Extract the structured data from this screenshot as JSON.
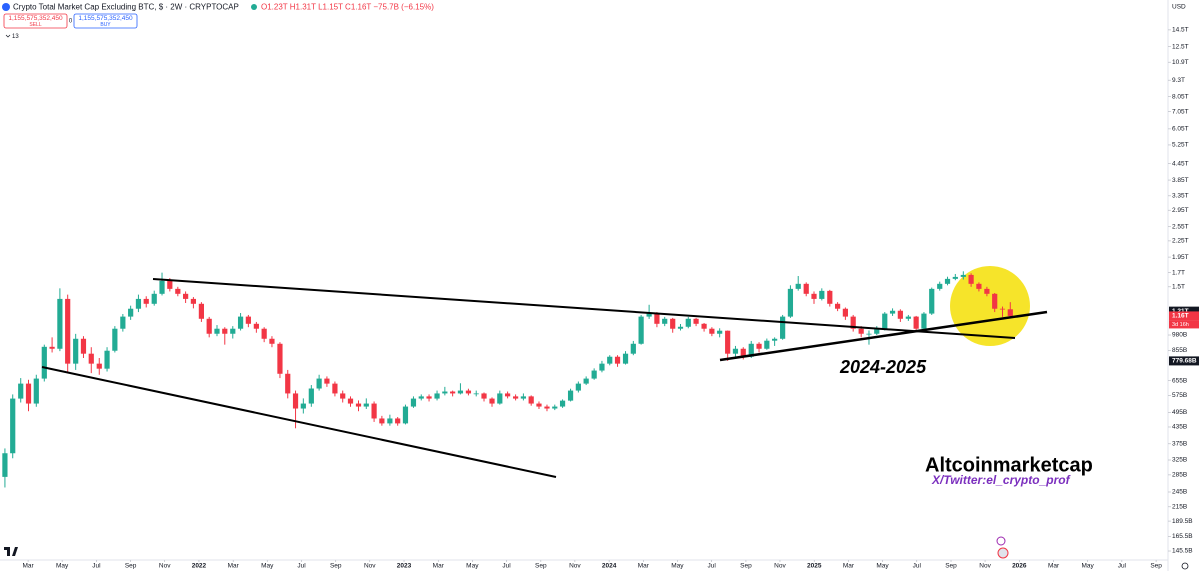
{
  "chart_data": {
    "type": "candlestick",
    "title": "Crypto Total Market Cap Excluding BTC, $ · 2W · CRYPTOCAP",
    "ohlc_text": "O1.23T H1.31T L1.15T C1.16T −75.7B (−6.15%)",
    "sell_price": "1,155,575,352,450",
    "sell_label": "SELL",
    "spread": "0",
    "buy_price": "1,155,575,352,450",
    "buy_label": "BUY",
    "indicator_count": "13",
    "currency": "USD",
    "annotations": [
      "2024-2025",
      "Altcoinmarketcap",
      "X/Twitter:el_crypto_prof"
    ],
    "log_scale": true,
    "grid": false,
    "up_color": "#22ab94",
    "down_color": "#f23645",
    "xlim": [
      2021.03,
      2026.725
    ],
    "ylim": [
      134.4,
      18880
    ],
    "xticks": [
      {
        "value": 2021.167,
        "label": "Mar"
      },
      {
        "value": 2021.333,
        "label": "May"
      },
      {
        "value": 2021.5,
        "label": "Jul"
      },
      {
        "value": 2021.667,
        "label": "Sep"
      },
      {
        "value": 2021.833,
        "label": "Nov"
      },
      2022,
      {
        "value": 2022.167,
        "label": "Mar"
      },
      {
        "value": 2022.333,
        "label": "May"
      },
      {
        "value": 2022.5,
        "label": "Jul"
      },
      {
        "value": 2022.667,
        "label": "Sep"
      },
      {
        "value": 2022.833,
        "label": "Nov"
      },
      2023,
      {
        "value": 2023.167,
        "label": "Mar"
      },
      {
        "value": 2023.333,
        "label": "May"
      },
      {
        "value": 2023.5,
        "label": "Jul"
      },
      {
        "value": 2023.667,
        "label": "Sep"
      },
      {
        "value": 2023.833,
        "label": "Nov"
      },
      2024,
      {
        "value": 2024.167,
        "label": "Mar"
      },
      {
        "value": 2024.333,
        "label": "May"
      },
      {
        "value": 2024.5,
        "label": "Jul"
      },
      {
        "value": 2024.667,
        "label": "Sep"
      },
      {
        "value": 2024.833,
        "label": "Nov"
      },
      2025,
      {
        "value": 2025.167,
        "label": "Mar"
      },
      {
        "value": 2025.333,
        "label": "May"
      },
      {
        "value": 2025.5,
        "label": "Jul"
      },
      {
        "value": 2025.667,
        "label": "Sep"
      },
      {
        "value": 2025.833,
        "label": "Nov"
      },
      2026,
      {
        "value": 2026.167,
        "label": "Mar"
      },
      {
        "value": 2026.333,
        "label": "May"
      },
      {
        "value": 2026.5,
        "label": "Jul"
      },
      {
        "value": 2026.667,
        "label": "Sep"
      }
    ],
    "yticks": [
      {
        "value": 14500,
        "label": "14.5T"
      },
      {
        "value": 12500,
        "label": "12.5T"
      },
      {
        "value": 10900,
        "label": "10.9T"
      },
      {
        "value": 9300,
        "label": "9.3T"
      },
      {
        "value": 8050,
        "label": "8.05T"
      },
      {
        "value": 7050,
        "label": "7.05T"
      },
      {
        "value": 6050,
        "label": "6.05T"
      },
      {
        "value": 5250,
        "label": "5.25T"
      },
      {
        "value": 4450,
        "label": "4.45T"
      },
      {
        "value": 3850,
        "label": "3.85T"
      },
      {
        "value": 3350,
        "label": "3.35T"
      },
      {
        "value": 2950,
        "label": "2.95T"
      },
      {
        "value": 2550,
        "label": "2.55T"
      },
      {
        "value": 2250,
        "label": "2.25T"
      },
      {
        "value": 1950,
        "label": "1.95T"
      },
      {
        "value": 1700,
        "label": "1.7T"
      },
      {
        "value": 1500,
        "label": "1.5T"
      },
      {
        "value": 980,
        "label": "980B"
      },
      {
        "value": 855,
        "label": "855B"
      },
      {
        "value": 655,
        "label": "655B"
      },
      {
        "value": 575,
        "label": "575B"
      },
      {
        "value": 495,
        "label": "495B"
      },
      {
        "value": 435,
        "label": "435B"
      },
      {
        "value": 375,
        "label": "375B"
      },
      {
        "value": 325,
        "label": "325B"
      },
      {
        "value": 285,
        "label": "285B"
      },
      {
        "value": 245,
        "label": "245B"
      },
      {
        "value": 215,
        "label": "215B"
      },
      {
        "value": 189.5,
        "label": "189.5B"
      },
      {
        "value": 165.5,
        "label": "165.5B"
      },
      {
        "value": 145.5,
        "label": "145.5B"
      }
    ],
    "price_labels": [
      {
        "value": 1210,
        "label": "1.21T",
        "color": "#131722"
      },
      {
        "value": 1160,
        "label": "1.16T",
        "color": "#f23645"
      },
      {
        "value": 779.68,
        "label": "779.68B",
        "color": "#131722"
      }
    ],
    "countdown": "3d 16h",
    "series": [
      {
        "name": "Crypto Total Market Cap Excluding BTC",
        "x": [
          2021.054,
          2021.092,
          2021.131,
          2021.169,
          2021.207,
          2021.246,
          2021.284,
          2021.322,
          2021.36,
          2021.399,
          2021.437,
          2021.475,
          2021.514,
          2021.552,
          2021.59,
          2021.629,
          2021.667,
          2021.705,
          2021.743,
          2021.782,
          2021.82,
          2021.858,
          2021.897,
          2021.935,
          2021.973,
          2022.012,
          2022.05,
          2022.088,
          2022.126,
          2022.165,
          2022.203,
          2022.241,
          2022.28,
          2022.318,
          2022.356,
          2022.395,
          2022.433,
          2022.471,
          2022.509,
          2022.548,
          2022.586,
          2022.624,
          2022.663,
          2022.701,
          2022.739,
          2022.778,
          2022.816,
          2022.854,
          2022.892,
          2022.931,
          2022.969,
          2023.007,
          2023.046,
          2023.084,
          2023.122,
          2023.161,
          2023.199,
          2023.237,
          2023.275,
          2023.314,
          2023.352,
          2023.39,
          2023.429,
          2023.467,
          2023.505,
          2023.544,
          2023.582,
          2023.62,
          2023.658,
          2023.697,
          2023.735,
          2023.773,
          2023.812,
          2023.85,
          2023.888,
          2023.927,
          2023.965,
          2024.003,
          2024.041,
          2024.08,
          2024.118,
          2024.156,
          2024.195,
          2024.233,
          2024.271,
          2024.31,
          2024.348,
          2024.386,
          2024.424,
          2024.463,
          2024.501,
          2024.539,
          2024.578,
          2024.616,
          2024.654,
          2024.693,
          2024.731,
          2024.769,
          2024.807,
          2024.846,
          2024.884,
          2024.922,
          2024.961,
          2024.999,
          2025.037,
          2025.076,
          2025.114,
          2025.152,
          2025.19,
          2025.229,
          2025.267,
          2025.305,
          2025.344,
          2025.382,
          2025.42,
          2025.459,
          2025.497,
          2025.535,
          2025.573,
          2025.612,
          2025.65,
          2025.688,
          2025.727,
          2025.765,
          2025.803,
          2025.842,
          2025.88,
          2025.918,
          2025.956
        ],
        "ohlc": [
          [
            280,
            360,
            255,
            345
          ],
          [
            345,
            580,
            330,
            559
          ],
          [
            559,
            670,
            540,
            638
          ],
          [
            638,
            660,
            500,
            535
          ],
          [
            535,
            690,
            520,
            667
          ],
          [
            667,
            900,
            650,
            883
          ],
          [
            883,
            960,
            840,
            868
          ],
          [
            868,
            1480,
            850,
            1348
          ],
          [
            1348,
            1400,
            700,
            761
          ],
          [
            761,
            990,
            720,
            948
          ],
          [
            948,
            970,
            800,
            831
          ],
          [
            831,
            880,
            700,
            761
          ],
          [
            761,
            800,
            690,
            728
          ],
          [
            728,
            880,
            710,
            853
          ],
          [
            853,
            1060,
            840,
            1036
          ],
          [
            1036,
            1180,
            1010,
            1153
          ],
          [
            1153,
            1270,
            1120,
            1236
          ],
          [
            1236,
            1400,
            1200,
            1348
          ],
          [
            1348,
            1380,
            1250,
            1291
          ],
          [
            1291,
            1450,
            1270,
            1410
          ],
          [
            1410,
            1700,
            1390,
            1581
          ],
          [
            1581,
            1620,
            1440,
            1473
          ],
          [
            1473,
            1500,
            1380,
            1410
          ],
          [
            1410,
            1440,
            1300,
            1348
          ],
          [
            1348,
            1370,
            1240,
            1291
          ],
          [
            1291,
            1310,
            1100,
            1131
          ],
          [
            1131,
            1150,
            960,
            991
          ],
          [
            991,
            1070,
            970,
            1036
          ],
          [
            1036,
            1050,
            900,
            991
          ],
          [
            991,
            1060,
            950,
            1036
          ],
          [
            1036,
            1190,
            1020,
            1153
          ],
          [
            1153,
            1170,
            1050,
            1082
          ],
          [
            1082,
            1100,
            1000,
            1036
          ],
          [
            1036,
            1050,
            920,
            948
          ],
          [
            948,
            970,
            880,
            907
          ],
          [
            907,
            920,
            670,
            696
          ],
          [
            696,
            720,
            560,
            585
          ],
          [
            585,
            600,
            430,
            512
          ],
          [
            512,
            560,
            490,
            535
          ],
          [
            535,
            630,
            520,
            611
          ],
          [
            611,
            690,
            600,
            667
          ],
          [
            667,
            680,
            620,
            638
          ],
          [
            638,
            650,
            570,
            585
          ],
          [
            585,
            600,
            540,
            559
          ],
          [
            559,
            570,
            520,
            535
          ],
          [
            535,
            550,
            500,
            521
          ],
          [
            521,
            560,
            510,
            535
          ],
          [
            535,
            545,
            455,
            469
          ],
          [
            469,
            480,
            440,
            449
          ],
          [
            449,
            485,
            440,
            469
          ],
          [
            469,
            475,
            440,
            449
          ],
          [
            449,
            530,
            445,
            521
          ],
          [
            521,
            570,
            515,
            559
          ],
          [
            559,
            580,
            550,
            570
          ],
          [
            570,
            580,
            545,
            559
          ],
          [
            559,
            600,
            550,
            585
          ],
          [
            585,
            620,
            575,
            595
          ],
          [
            595,
            600,
            570,
            585
          ],
          [
            585,
            640,
            580,
            600
          ],
          [
            600,
            610,
            575,
            585
          ],
          [
            585,
            600,
            570,
            585
          ],
          [
            585,
            590,
            545,
            559
          ],
          [
            559,
            565,
            520,
            535
          ],
          [
            535,
            600,
            530,
            585
          ],
          [
            585,
            595,
            560,
            570
          ],
          [
            570,
            580,
            550,
            559
          ],
          [
            559,
            585,
            550,
            570
          ],
          [
            570,
            575,
            525,
            535
          ],
          [
            535,
            545,
            510,
            521
          ],
          [
            521,
            530,
            500,
            512
          ],
          [
            512,
            530,
            505,
            521
          ],
          [
            521,
            555,
            515,
            549
          ],
          [
            549,
            610,
            545,
            600
          ],
          [
            600,
            650,
            590,
            638
          ],
          [
            638,
            680,
            630,
            667
          ],
          [
            667,
            730,
            660,
            716
          ],
          [
            716,
            780,
            705,
            761
          ],
          [
            761,
            820,
            750,
            809
          ],
          [
            809,
            820,
            740,
            761
          ],
          [
            761,
            850,
            755,
            831
          ],
          [
            831,
            930,
            820,
            907
          ],
          [
            907,
            1170,
            900,
            1153
          ],
          [
            1153,
            1280,
            1130,
            1184
          ],
          [
            1184,
            1200,
            1050,
            1082
          ],
          [
            1082,
            1150,
            1060,
            1131
          ],
          [
            1131,
            1140,
            1000,
            1036
          ],
          [
            1036,
            1080,
            1020,
            1054
          ],
          [
            1054,
            1150,
            1040,
            1131
          ],
          [
            1131,
            1140,
            1060,
            1082
          ],
          [
            1082,
            1090,
            1010,
            1036
          ],
          [
            1036,
            1050,
            970,
            991
          ],
          [
            991,
            1040,
            960,
            1018
          ],
          [
            1018,
            1020,
            780,
            831
          ],
          [
            831,
            890,
            800,
            868
          ],
          [
            868,
            880,
            790,
            809
          ],
          [
            809,
            930,
            800,
            907
          ],
          [
            907,
            920,
            840,
            868
          ],
          [
            868,
            950,
            860,
            932
          ],
          [
            932,
            960,
            890,
            948
          ],
          [
            948,
            1170,
            940,
            1153
          ],
          [
            1153,
            1520,
            1140,
            1473
          ],
          [
            1473,
            1650,
            1450,
            1540
          ],
          [
            1540,
            1560,
            1380,
            1410
          ],
          [
            1410,
            1440,
            1290,
            1348
          ],
          [
            1348,
            1480,
            1330,
            1447
          ],
          [
            1447,
            1460,
            1260,
            1291
          ],
          [
            1291,
            1310,
            1210,
            1236
          ],
          [
            1236,
            1250,
            1120,
            1153
          ],
          [
            1153,
            1170,
            1010,
            1036
          ],
          [
            1036,
            1060,
            960,
            991
          ],
          [
            991,
            1020,
            900,
            991
          ],
          [
            991,
            1060,
            980,
            1036
          ],
          [
            1036,
            1200,
            1020,
            1184
          ],
          [
            1184,
            1240,
            1160,
            1214
          ],
          [
            1214,
            1230,
            1100,
            1131
          ],
          [
            1131,
            1170,
            1110,
            1153
          ],
          [
            1153,
            1160,
            1010,
            1036
          ],
          [
            1036,
            1200,
            1020,
            1184
          ],
          [
            1184,
            1490,
            1170,
            1473
          ],
          [
            1473,
            1570,
            1450,
            1540
          ],
          [
            1540,
            1640,
            1520,
            1609
          ],
          [
            1609,
            1680,
            1590,
            1637
          ],
          [
            1637,
            1720,
            1600,
            1666
          ],
          [
            1666,
            1690,
            1500,
            1540
          ],
          [
            1540,
            1560,
            1440,
            1473
          ],
          [
            1473,
            1500,
            1380,
            1410
          ],
          [
            1410,
            1420,
            1200,
            1236
          ],
          [
            1236,
            1260,
            1150,
            1230
          ],
          [
            1230,
            1310,
            1150,
            1160
          ]
        ]
      }
    ]
  }
}
